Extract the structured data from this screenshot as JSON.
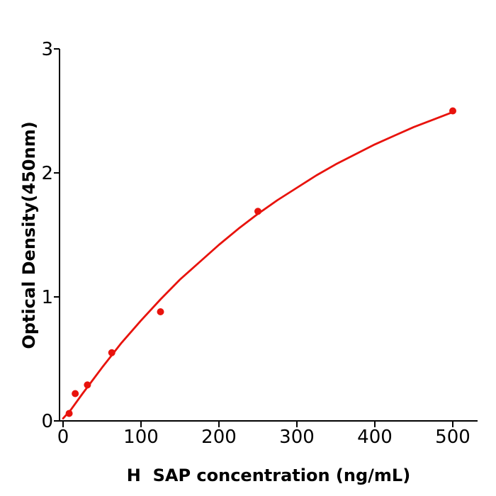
{
  "chart_data": {
    "type": "scatter",
    "title": "",
    "xlabel": "H  SAP concentration (ng/mL)",
    "ylabel": "Optical Density(450nm)",
    "xlim": [
      -5,
      535
    ],
    "ylim": [
      0,
      3
    ],
    "x_ticks": [
      0,
      100,
      200,
      300,
      400,
      500
    ],
    "y_ticks": [
      0,
      1,
      2,
      3
    ],
    "grid": false,
    "legend": null,
    "series_color": "#e8130d",
    "axis_color": "#000000",
    "points": [
      {
        "x": 7.8,
        "y": 0.06
      },
      {
        "x": 15.6,
        "y": 0.22
      },
      {
        "x": 31.25,
        "y": 0.29
      },
      {
        "x": 62.5,
        "y": 0.55
      },
      {
        "x": 125,
        "y": 0.88
      },
      {
        "x": 250,
        "y": 1.69
      },
      {
        "x": 500,
        "y": 2.5
      }
    ],
    "curve": {
      "x": [
        0,
        10,
        25,
        50,
        75,
        100,
        125,
        150,
        175,
        200,
        225,
        250,
        275,
        300,
        325,
        350,
        375,
        400,
        425,
        450,
        475,
        500
      ],
      "y": [
        0.02,
        0.09,
        0.22,
        0.43,
        0.63,
        0.81,
        0.98,
        1.14,
        1.28,
        1.42,
        1.55,
        1.67,
        1.78,
        1.88,
        1.98,
        2.07,
        2.15,
        2.23,
        2.3,
        2.37,
        2.43,
        2.49
      ]
    }
  }
}
